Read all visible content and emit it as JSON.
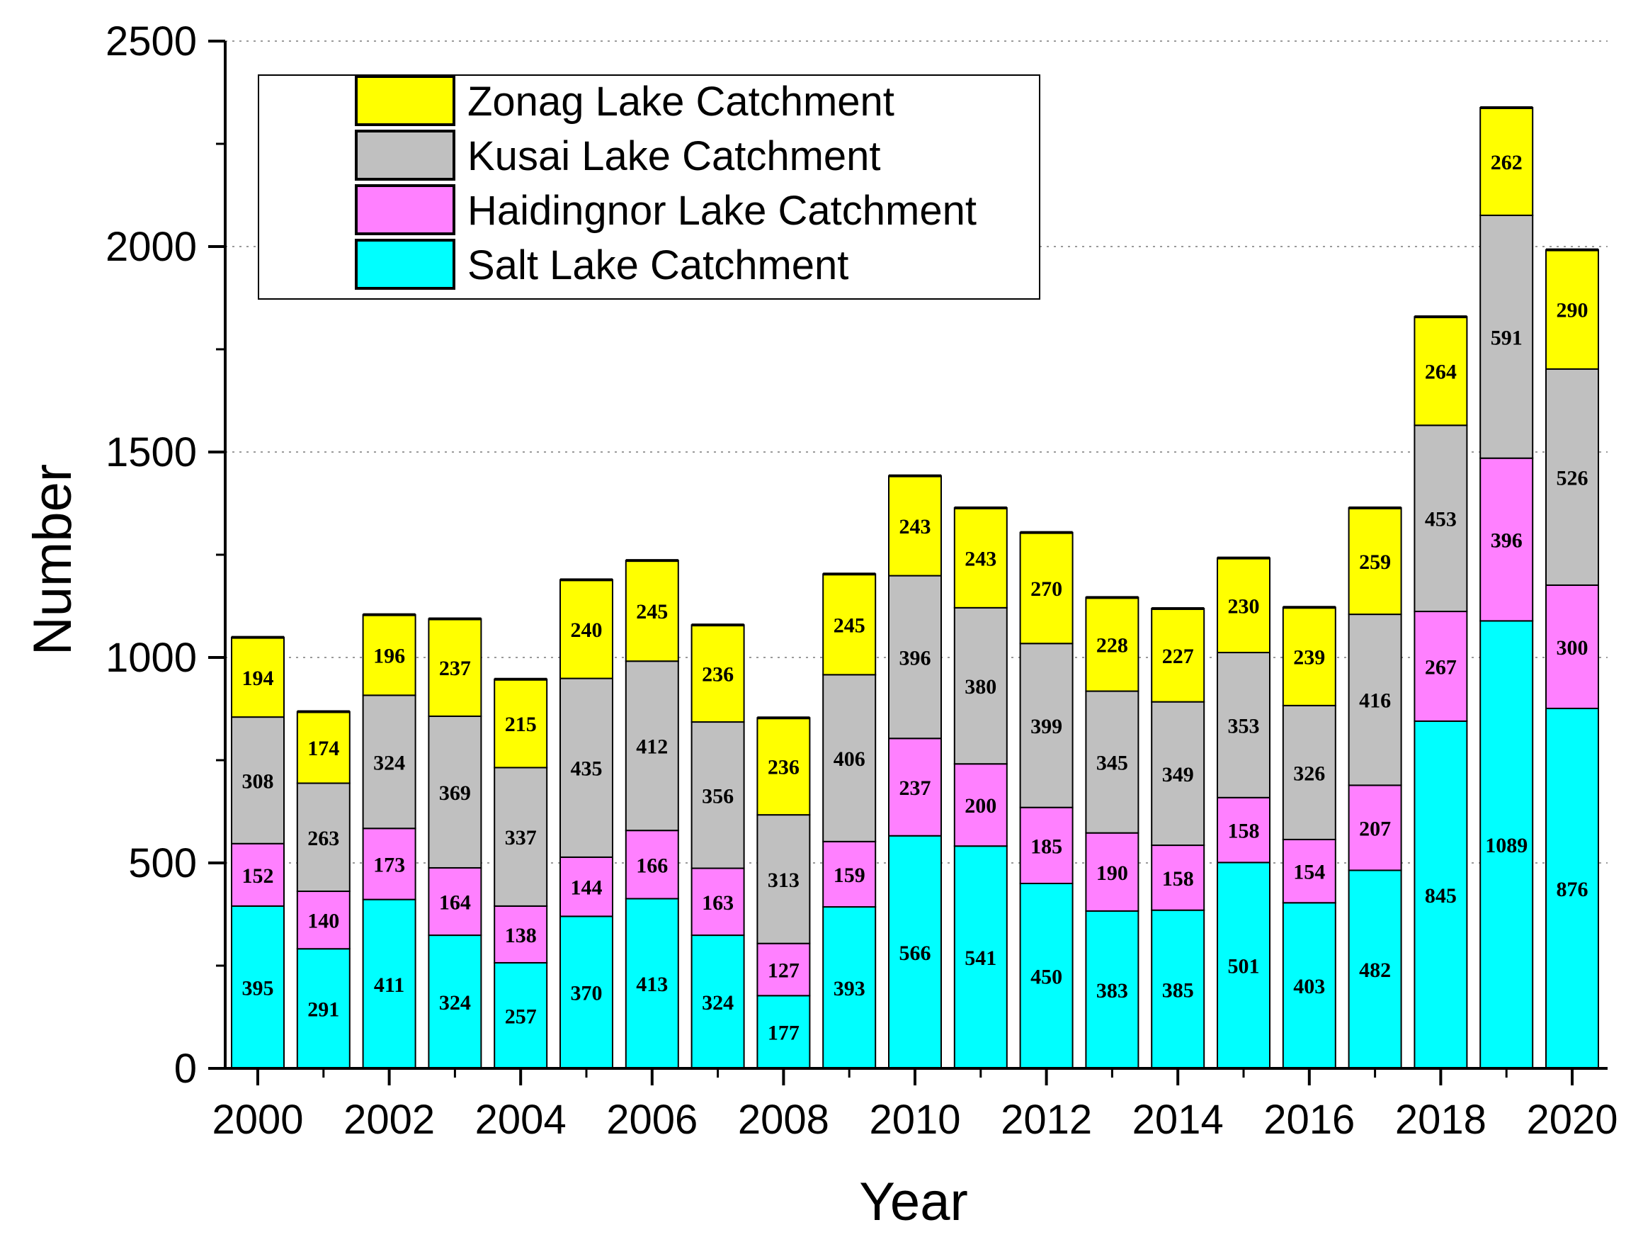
{
  "chart_data": {
    "type": "bar",
    "stacked": true,
    "title": "",
    "xlabel": "Year",
    "ylabel": "Number",
    "ylim": [
      0,
      2500
    ],
    "yticks": [
      0,
      500,
      1000,
      1500,
      2000,
      2500
    ],
    "xtick_labels": [
      "2000",
      "2002",
      "2004",
      "2006",
      "2008",
      "2010",
      "2012",
      "2014",
      "2016",
      "2018",
      "2020"
    ],
    "categories": [
      "2000",
      "2001",
      "2002",
      "2003",
      "2004",
      "2005",
      "2006",
      "2007",
      "2008",
      "2009",
      "2010",
      "2011",
      "2012",
      "2013",
      "2014",
      "2015",
      "2016",
      "2017",
      "2018",
      "2019",
      "2020"
    ],
    "legend_position": "top-left",
    "gridlines": "dotted horizontal",
    "series": [
      {
        "name": "Salt Lake Catchment",
        "color": "#00ffff",
        "values": [
          395,
          291,
          411,
          324,
          257,
          370,
          413,
          324,
          177,
          393,
          566,
          541,
          450,
          383,
          385,
          501,
          403,
          482,
          845,
          1089,
          876
        ]
      },
      {
        "name": "Haidingnor Lake Catchment",
        "color": "#ff80ff",
        "values": [
          152,
          140,
          173,
          164,
          138,
          144,
          166,
          163,
          127,
          159,
          237,
          200,
          185,
          190,
          158,
          158,
          154,
          207,
          267,
          396,
          300
        ]
      },
      {
        "name": "Kusai Lake Catchment",
        "color": "#c0c0c0",
        "values": [
          308,
          263,
          324,
          369,
          337,
          435,
          412,
          356,
          313,
          406,
          396,
          380,
          399,
          345,
          349,
          353,
          326,
          416,
          453,
          591,
          526
        ]
      },
      {
        "name": "Zonag Lake Catchment",
        "color": "#ffff00",
        "values": [
          194,
          174,
          196,
          237,
          215,
          240,
          245,
          236,
          236,
          245,
          243,
          243,
          270,
          228,
          227,
          230,
          239,
          259,
          264,
          262,
          290
        ]
      }
    ]
  }
}
